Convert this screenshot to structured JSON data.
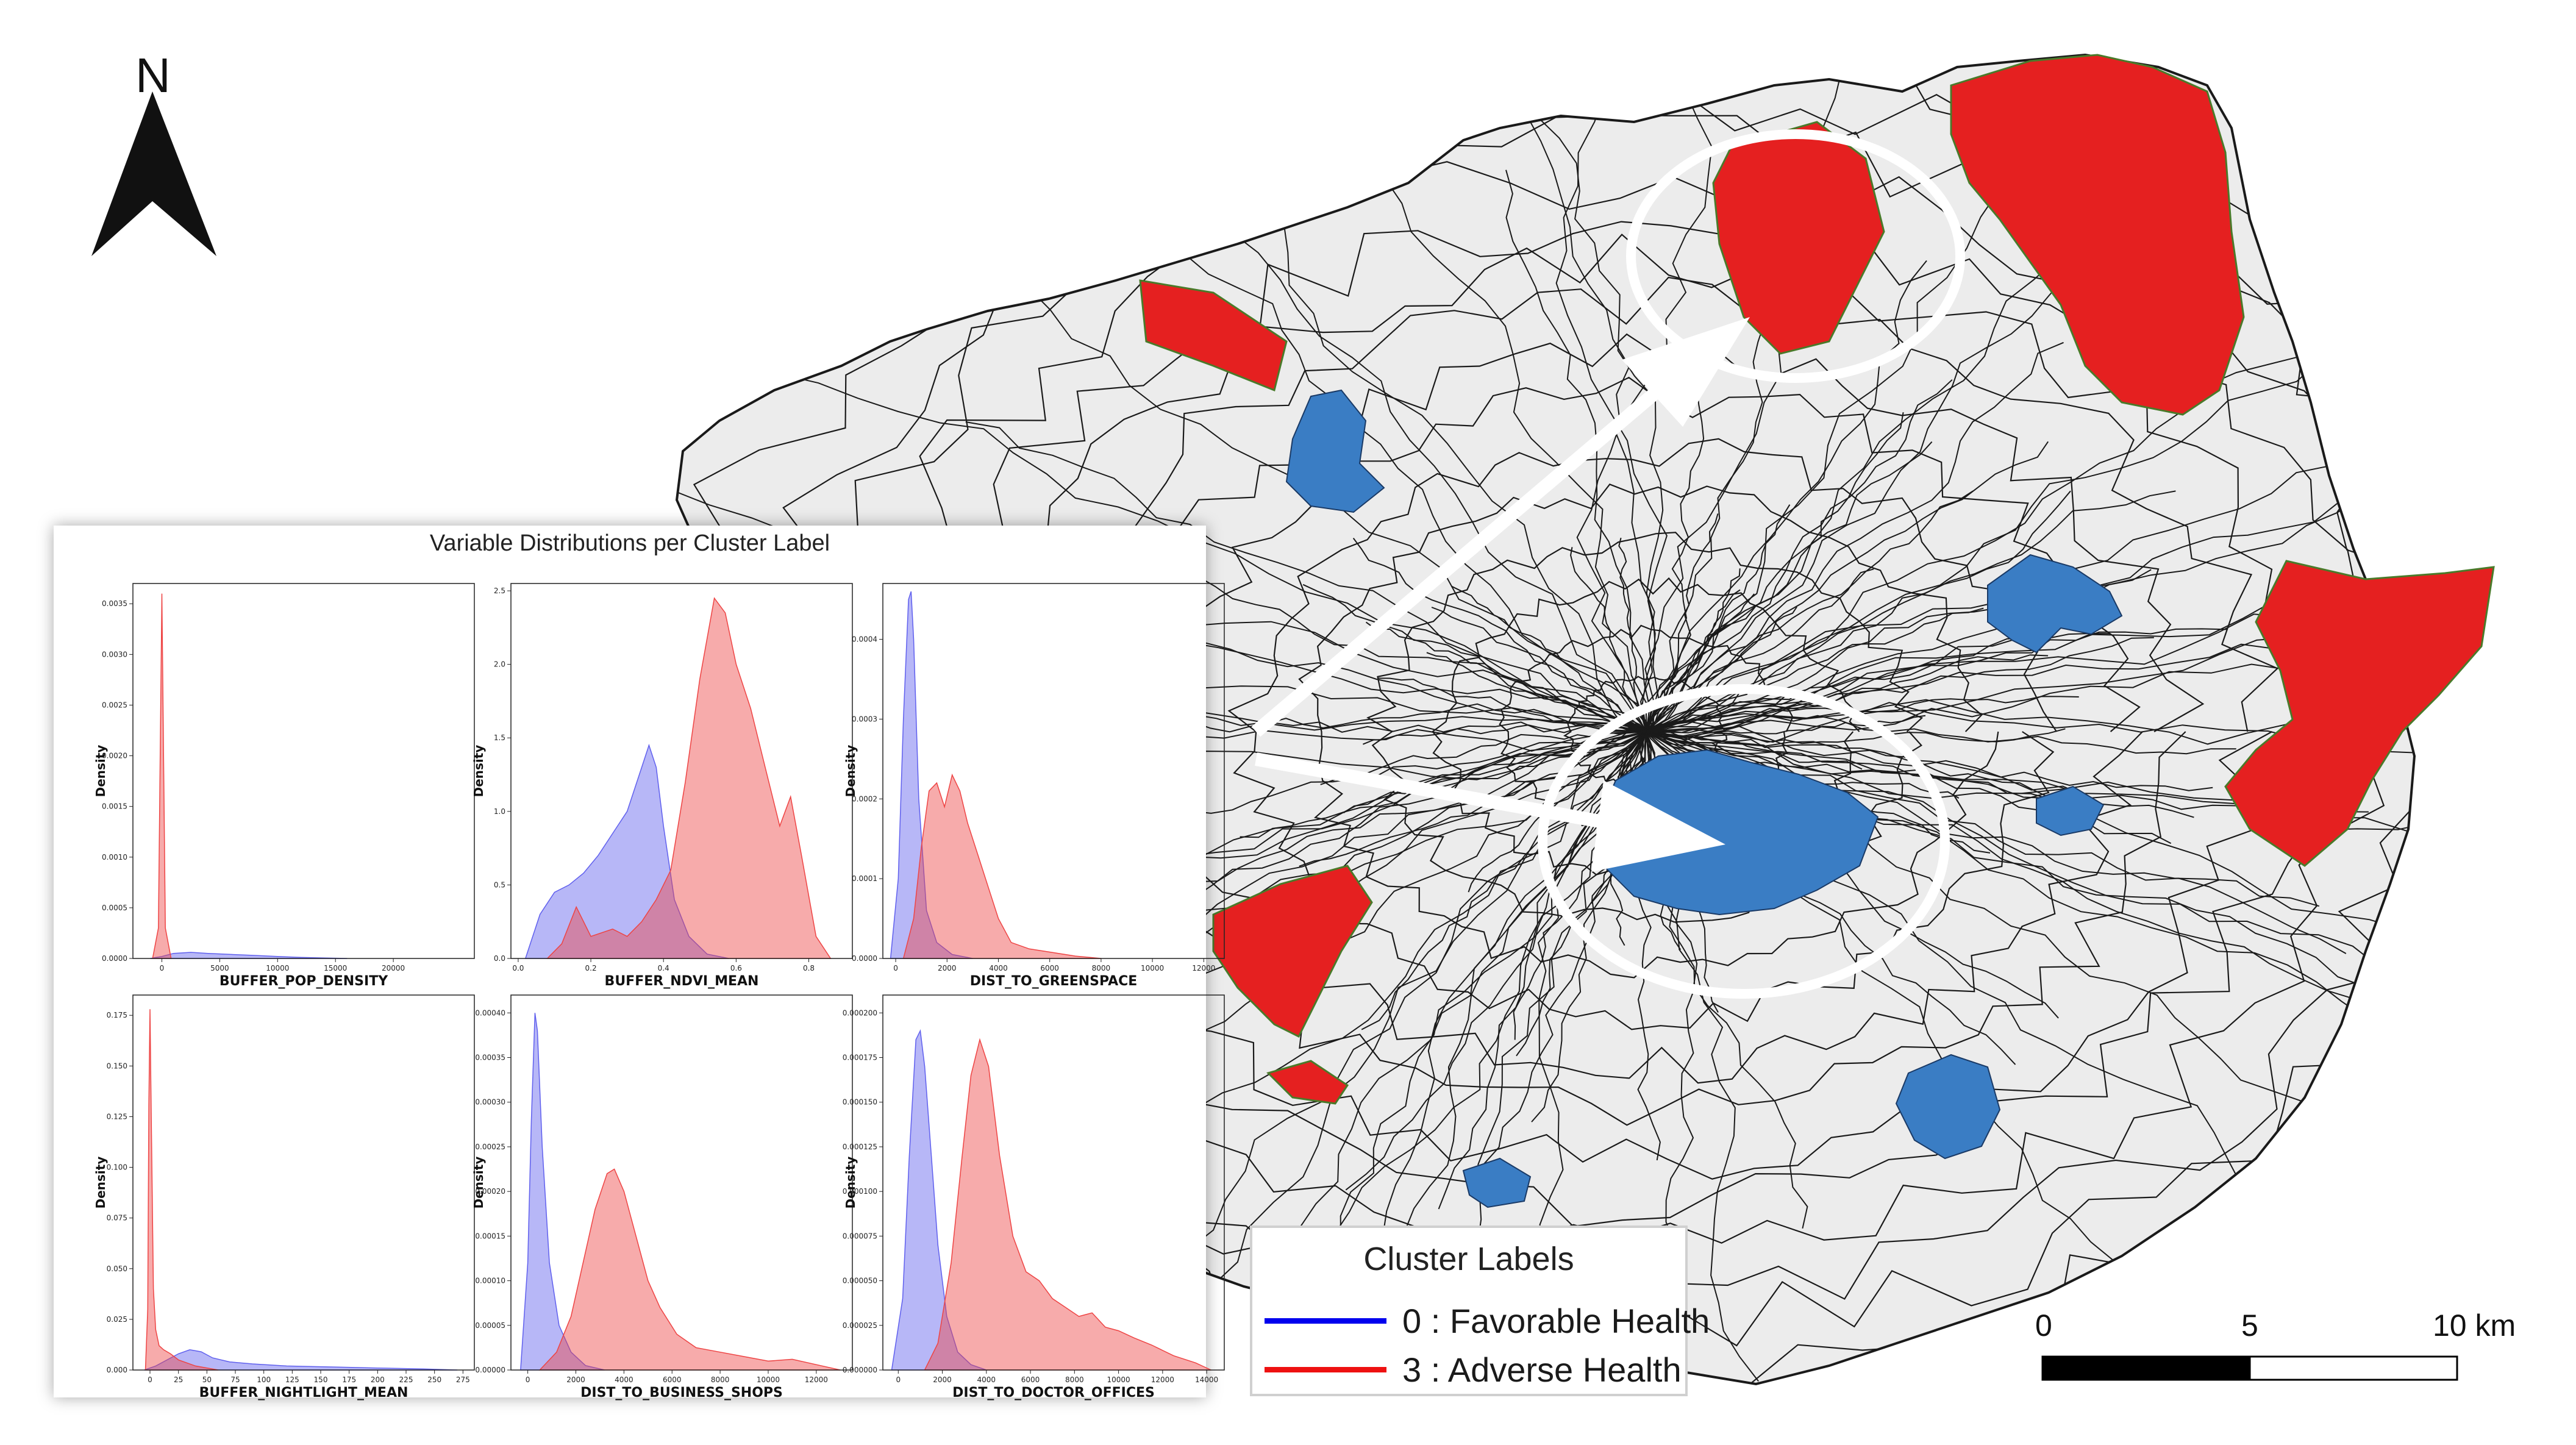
{
  "north_arrow": {
    "label": "N"
  },
  "map": {
    "colors": {
      "background_area": "#ececec",
      "boundary": "#1a1a1a",
      "favorable": "#3a7dc4",
      "adverse": "#e52020",
      "adverse_edge": "#4a7a2a",
      "highlight": "#ffffff"
    }
  },
  "legend": {
    "title": "Cluster Labels",
    "items": [
      {
        "label": "0 : Favorable Health",
        "color": "#0000ee"
      },
      {
        "label": "3 : Adverse Health",
        "color": "#ee1111"
      }
    ]
  },
  "scale_bar": {
    "labels": [
      "0",
      "5",
      "10 km"
    ]
  },
  "inset": {
    "title": "Variable Distributions per Cluster Label"
  },
  "chart_data": [
    {
      "type": "area",
      "xlabel": "BUFFER_POP_DENSITY",
      "ylabel": "Density",
      "xlim": [
        -2500,
        27000
      ],
      "ylim": [
        0,
        0.0037
      ],
      "xticks": [
        0,
        5000,
        10000,
        15000,
        20000
      ],
      "yticks": [
        0,
        0.0005,
        0.001,
        0.0015,
        0.002,
        0.0025,
        0.003,
        0.0035
      ],
      "ytick_labels": [
        "0.0000",
        "0.0005",
        "0.0010",
        "0.0015",
        "0.0020",
        "0.0025",
        "0.0030",
        "0.0035"
      ],
      "series": [
        {
          "cluster": 0,
          "color": "#6060ee",
          "x": [
            -1000,
            0,
            1000,
            2500,
            4000,
            6000,
            8000,
            10000,
            12000,
            16000
          ],
          "y": [
            0,
            2e-05,
            5e-05,
            6e-05,
            5e-05,
            4e-05,
            3e-05,
            2e-05,
            1e-05,
            0
          ]
        },
        {
          "cluster": 3,
          "color": "#ee4444",
          "x": [
            -800,
            -300,
            -100,
            0,
            100,
            300,
            800
          ],
          "y": [
            0,
            0.0003,
            0.0025,
            0.0036,
            0.0025,
            0.0003,
            0
          ]
        }
      ]
    },
    {
      "type": "area",
      "xlabel": "BUFFER_NDVI_MEAN",
      "ylabel": "Density",
      "xlim": [
        -0.02,
        0.92
      ],
      "ylim": [
        0,
        2.55
      ],
      "xticks": [
        0,
        0.2,
        0.4,
        0.6,
        0.8
      ],
      "yticks": [
        0,
        0.5,
        1.0,
        1.5,
        2.0,
        2.5
      ],
      "xtick_labels": [
        "0.0",
        "0.2",
        "0.4",
        "0.6",
        "0.8"
      ],
      "ytick_labels": [
        "0.0",
        "0.5",
        "1.0",
        "1.5",
        "2.0",
        "2.5"
      ],
      "series": [
        {
          "cluster": 0,
          "color": "#6060ee",
          "x": [
            0.02,
            0.06,
            0.1,
            0.14,
            0.18,
            0.22,
            0.26,
            0.3,
            0.34,
            0.36,
            0.38,
            0.4,
            0.43,
            0.47,
            0.52,
            0.58
          ],
          "y": [
            0,
            0.3,
            0.45,
            0.5,
            0.58,
            0.7,
            0.85,
            1.0,
            1.3,
            1.45,
            1.3,
            0.9,
            0.4,
            0.15,
            0.03,
            0
          ]
        },
        {
          "cluster": 3,
          "color": "#ee4444",
          "x": [
            0.08,
            0.12,
            0.16,
            0.2,
            0.26,
            0.3,
            0.34,
            0.38,
            0.42,
            0.46,
            0.5,
            0.54,
            0.57,
            0.6,
            0.64,
            0.68,
            0.72,
            0.75,
            0.78,
            0.82,
            0.86
          ],
          "y": [
            0,
            0.1,
            0.35,
            0.15,
            0.2,
            0.15,
            0.25,
            0.4,
            0.6,
            1.2,
            1.9,
            2.45,
            2.35,
            2.0,
            1.7,
            1.3,
            0.9,
            1.1,
            0.7,
            0.15,
            0
          ]
        }
      ]
    },
    {
      "type": "area",
      "xlabel": "DIST_TO_GREENSPACE",
      "ylabel": "Density",
      "xlim": [
        -500,
        12800
      ],
      "ylim": [
        0,
        0.00047
      ],
      "xticks": [
        0,
        2000,
        4000,
        6000,
        8000,
        10000,
        12000
      ],
      "yticks": [
        0,
        0.0001,
        0.0002,
        0.0003,
        0.0004
      ],
      "ytick_labels": [
        "0.0000",
        "0.0001",
        "0.0002",
        "0.0003",
        "0.0004"
      ],
      "series": [
        {
          "cluster": 0,
          "color": "#6060ee",
          "x": [
            -200,
            100,
            300,
            500,
            600,
            700,
            900,
            1200,
            1600,
            2200,
            3000
          ],
          "y": [
            0,
            0.0001,
            0.0003,
            0.00045,
            0.00046,
            0.0004,
            0.0002,
            6e-05,
            2e-05,
            5e-06,
            0
          ]
        },
        {
          "cluster": 3,
          "color": "#ee4444",
          "x": [
            300,
            700,
            1000,
            1300,
            1600,
            1900,
            2200,
            2500,
            2800,
            3200,
            3600,
            4000,
            4500,
            5200,
            6000,
            7000,
            8000
          ],
          "y": [
            0,
            5e-05,
            0.00014,
            0.00021,
            0.00022,
            0.00019,
            0.00023,
            0.00021,
            0.00017,
            0.00013,
            9e-05,
            5e-05,
            2e-05,
            1.2e-05,
            8e-06,
            3e-06,
            0
          ]
        }
      ]
    },
    {
      "type": "area",
      "xlabel": "BUFFER_NIGHTLIGHT_MEAN",
      "ylabel": "Density",
      "xlim": [
        -15,
        285
      ],
      "ylim": [
        0,
        0.185
      ],
      "xticks": [
        0,
        25,
        50,
        75,
        100,
        125,
        150,
        175,
        200,
        225,
        250,
        275
      ],
      "yticks": [
        0,
        0.025,
        0.05,
        0.075,
        0.1,
        0.125,
        0.15,
        0.175
      ],
      "ytick_labels": [
        "0.000",
        "0.025",
        "0.050",
        "0.075",
        "0.100",
        "0.125",
        "0.150",
        "0.175"
      ],
      "series": [
        {
          "cluster": 0,
          "color": "#6060ee",
          "x": [
            -5,
            5,
            15,
            25,
            35,
            45,
            55,
            70,
            90,
            120,
            160,
            200,
            240,
            270
          ],
          "y": [
            0,
            0.002,
            0.005,
            0.008,
            0.01,
            0.009,
            0.006,
            0.004,
            0.003,
            0.002,
            0.0015,
            0.001,
            0.0005,
            0
          ]
        },
        {
          "cluster": 3,
          "color": "#ee4444",
          "x": [
            -4,
            -2,
            -1,
            0,
            1,
            3,
            5,
            8,
            12,
            18,
            25,
            40,
            60
          ],
          "y": [
            0,
            0.03,
            0.13,
            0.178,
            0.13,
            0.04,
            0.02,
            0.012,
            0.01,
            0.008,
            0.005,
            0.002,
            0
          ]
        }
      ]
    },
    {
      "type": "area",
      "xlabel": "DIST_TO_BUSINESS_SHOPS",
      "ylabel": "Density",
      "xlim": [
        -700,
        13500
      ],
      "ylim": [
        0,
        0.00042
      ],
      "xticks": [
        0,
        2000,
        4000,
        6000,
        8000,
        10000,
        12000
      ],
      "yticks": [
        0,
        5e-05,
        0.0001,
        0.00015,
        0.0002,
        0.00025,
        0.0003,
        0.00035,
        0.0004
      ],
      "ytick_labels": [
        "0.00000",
        "0.00005",
        "0.00010",
        "0.00015",
        "0.00020",
        "0.00025",
        "0.00030",
        "0.00035",
        "0.00040"
      ],
      "series": [
        {
          "cluster": 0,
          "color": "#6060ee",
          "x": [
            -300,
            0,
            150,
            300,
            400,
            600,
            900,
            1300,
            1800,
            2400,
            3200
          ],
          "y": [
            0,
            0.00012,
            0.00028,
            0.0004,
            0.00038,
            0.00025,
            0.00012,
            5e-05,
            2e-05,
            5e-06,
            0
          ]
        },
        {
          "cluster": 3,
          "color": "#ee4444",
          "x": [
            500,
            1200,
            1800,
            2300,
            2800,
            3300,
            3600,
            4000,
            4500,
            5000,
            5500,
            6200,
            7000,
            8000,
            9000,
            10000,
            11000,
            12000,
            13000
          ],
          "y": [
            0,
            2e-05,
            6e-05,
            0.00012,
            0.00018,
            0.00022,
            0.000225,
            0.0002,
            0.00015,
            0.0001,
            7e-05,
            4e-05,
            2.5e-05,
            2e-05,
            1.5e-05,
            1e-05,
            1.2e-05,
            6e-06,
            0
          ]
        }
      ]
    },
    {
      "type": "area",
      "xlabel": "DIST_TO_DOCTOR_OFFICES",
      "ylabel": "Density",
      "xlim": [
        -700,
        14800
      ],
      "ylim": [
        0,
        0.00021
      ],
      "xticks": [
        0,
        2000,
        4000,
        6000,
        8000,
        10000,
        12000,
        14000
      ],
      "yticks": [
        0,
        2.5e-05,
        5e-05,
        7.5e-05,
        0.0001,
        0.000125,
        0.00015,
        0.000175,
        0.0002
      ],
      "ytick_labels": [
        "0.000000",
        "0.000025",
        "0.000050",
        "0.000075",
        "0.000100",
        "0.000125",
        "0.000150",
        "0.000175",
        "0.000200"
      ],
      "series": [
        {
          "cluster": 0,
          "color": "#6060ee",
          "x": [
            -300,
            200,
            500,
            800,
            1000,
            1200,
            1500,
            1800,
            2200,
            2700,
            3300,
            4000
          ],
          "y": [
            0,
            4e-05,
            0.00012,
            0.000185,
            0.00019,
            0.00017,
            0.00012,
            7e-05,
            3e-05,
            1e-05,
            3e-06,
            0
          ]
        },
        {
          "cluster": 3,
          "color": "#ee4444",
          "x": [
            1200,
            1800,
            2400,
            2900,
            3300,
            3700,
            4100,
            4600,
            5200,
            5800,
            6400,
            7000,
            7600,
            8200,
            8800,
            9400,
            10000,
            10700,
            11500,
            12500,
            13500,
            14200
          ],
          "y": [
            0,
            1.5e-05,
            6e-05,
            0.00012,
            0.000165,
            0.000185,
            0.00017,
            0.00012,
            7.5e-05,
            5.5e-05,
            5e-05,
            4e-05,
            3.5e-05,
            3e-05,
            3.2e-05,
            2.4e-05,
            2.2e-05,
            1.8e-05,
            1.4e-05,
            8e-06,
            4e-06,
            0
          ]
        }
      ]
    }
  ]
}
